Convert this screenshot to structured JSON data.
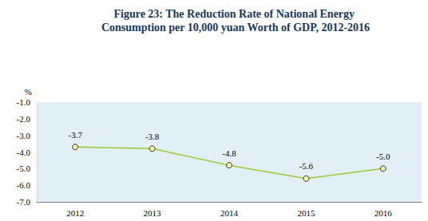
{
  "chart_data": {
    "type": "line",
    "title": "Figure 23: The Reduction Rate of National Energy Consumption per 10,000 yuan Worth of GDP, 2012-2016",
    "ylabel": "%",
    "categories": [
      "2012",
      "2013",
      "2014",
      "2015",
      "2016"
    ],
    "values": [
      -3.7,
      -3.8,
      -4.8,
      -5.6,
      -5.0
    ],
    "value_labels": [
      "-3.7",
      "-3.8",
      "-4.8",
      "-5.6",
      "-5.0"
    ],
    "color": "#99cc33",
    "marker": "circle",
    "ylim": [
      -7,
      -1
    ],
    "yticks": [
      {
        "value": -7,
        "label": "-7.0"
      },
      {
        "value": -6,
        "label": "-6.0"
      },
      {
        "value": -5,
        "label": "-5.0"
      },
      {
        "value": -4,
        "label": "-4.0"
      },
      {
        "value": -3,
        "label": "-3.0"
      },
      {
        "value": -2,
        "label": "-2.0"
      },
      {
        "value": -1,
        "label": "-1.0"
      }
    ],
    "grid": false,
    "data_labels": true
  }
}
